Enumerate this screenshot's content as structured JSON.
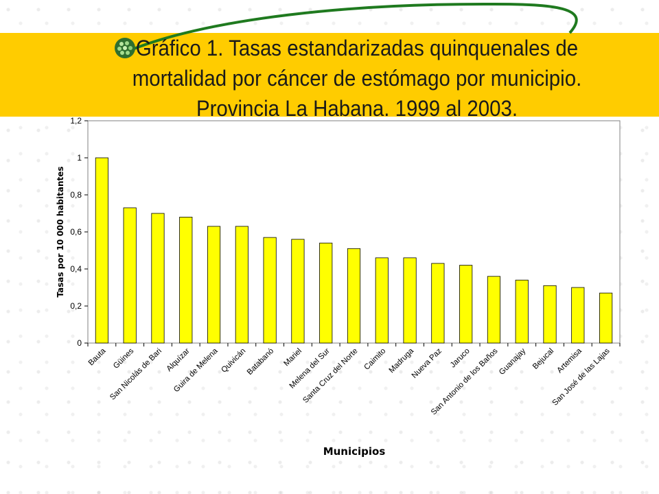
{
  "slide": {
    "title": "Gráfico 1. Tasas estandarizadas quinquenales de mortalidad por cáncer de estómago por municipio. Provincia La Habana. 1999 al 2003.",
    "accent_color": "#ffcc00",
    "bar_color": "#ffff00",
    "ornament": "green-bead-ball-icon"
  },
  "chart_data": {
    "type": "bar",
    "title": "Gráfico 1. Tasas estandarizadas quinquenales de mortalidad por cáncer de estómago por municipio. Provincia La Habana. 1999 al 2003.",
    "xlabel": "Municipios",
    "ylabel": "Tasas por 10 000 habitantes",
    "ylim": [
      0,
      1.2
    ],
    "yticks": [
      "0",
      "0,2",
      "0,4",
      "0,6",
      "0,8",
      "1",
      "1,2"
    ],
    "ytick_values": [
      0,
      0.2,
      0.4,
      0.6,
      0.8,
      1.0,
      1.2
    ],
    "grid": false,
    "legend": "none",
    "categories": [
      "Bauta",
      "Güines",
      "San Nicolás de Bari",
      "Alquízar",
      "Guira de Melena",
      "Quivicán",
      "Batabanó",
      "Mariel",
      "Melena del Sur",
      "Santa Cruz del Norte",
      "Caimito",
      "Madruga",
      "Nueva Paz",
      "Jaruco",
      "San Antonio de los Baños",
      "Guanajay",
      "Bejucal",
      "Artemisa",
      "San José de las Lajas"
    ],
    "values": [
      1.0,
      0.73,
      0.7,
      0.68,
      0.63,
      0.63,
      0.57,
      0.56,
      0.54,
      0.51,
      0.46,
      0.46,
      0.43,
      0.42,
      0.36,
      0.34,
      0.31,
      0.3,
      0.27
    ]
  }
}
